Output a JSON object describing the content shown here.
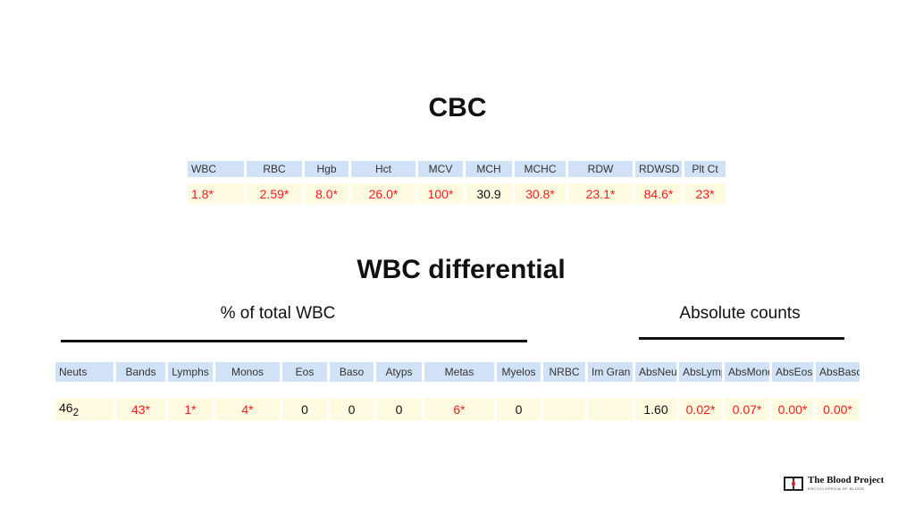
{
  "cbc": {
    "title": "CBC",
    "headers": [
      "WBC",
      "RBC",
      "Hgb",
      "Hct",
      "MCV",
      "MCH",
      "MCHC",
      "RDW",
      "RDWSD",
      "Plt Ct"
    ],
    "values": [
      "1.8*",
      "2.59*",
      "8.0*",
      "26.0*",
      "100*",
      "30.9",
      "30.8*",
      "23.1*",
      "84.6*",
      "23*"
    ]
  },
  "differential": {
    "title": "WBC differential",
    "percent_label": "% of total WBC",
    "absolute_label": "Absolute counts",
    "headers": [
      "Neuts",
      "Bands",
      "Lymphs",
      "Monos",
      "Eos",
      "Baso",
      "Atyps",
      "Metas",
      "Myelos",
      "NRBC",
      "Im Gran",
      "AbsNeut",
      "AbsLymp",
      "AbsMono",
      "AbsEos",
      "AbsBaso"
    ],
    "values": [
      {
        "text": "46",
        "sub": "2"
      },
      "43*",
      "1*",
      "4*",
      "0",
      "0",
      "0",
      "6*",
      "0",
      null,
      null,
      "1.60",
      "0.02*",
      "0.07*",
      "0.00*",
      "0.00*"
    ]
  },
  "logo": {
    "name": "The Blood Project",
    "tagline": "ENCYCLOPEDIA OF BLOOD"
  }
}
